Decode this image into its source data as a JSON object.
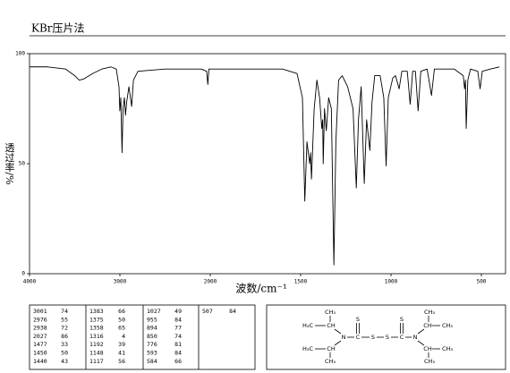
{
  "chart_data": {
    "type": "line",
    "title": "KBr压片法",
    "xlabel": "波数/cm⁻¹",
    "ylabel": "透过率/%",
    "x": [
      4000,
      3800,
      3600,
      3500,
      3450,
      3400,
      3300,
      3200,
      3100,
      3040,
      3010,
      3001,
      2990,
      2976,
      2965,
      2950,
      2938,
      2925,
      2900,
      2870,
      2850,
      2800,
      2500,
      2100,
      2040,
      2027,
      2015,
      1800,
      1600,
      1520,
      1490,
      1477,
      1465,
      1450,
      1445,
      1440,
      1425,
      1410,
      1395,
      1383,
      1378,
      1375,
      1368,
      1358,
      1345,
      1330,
      1316,
      1305,
      1290,
      1270,
      1240,
      1210,
      1192,
      1180,
      1165,
      1148,
      1135,
      1117,
      1105,
      1090,
      1060,
      1040,
      1027,
      1015,
      990,
      975,
      955,
      940,
      910,
      894,
      880,
      865,
      850,
      835,
      800,
      776,
      760,
      700,
      650,
      600,
      593,
      588,
      584,
      575,
      560,
      520,
      507,
      495,
      450,
      400
    ],
    "values": [
      94,
      94,
      93,
      90,
      88,
      88.5,
      91,
      93,
      94,
      93,
      85,
      74,
      80,
      55,
      75,
      80,
      72,
      78,
      85,
      76,
      88,
      92,
      93,
      93,
      92,
      86,
      93,
      93,
      93,
      91,
      80,
      33,
      60,
      50,
      55,
      43,
      75,
      88,
      80,
      66,
      70,
      50,
      75,
      65,
      80,
      75,
      4,
      60,
      88,
      90,
      85,
      75,
      39,
      70,
      85,
      41,
      70,
      56,
      78,
      90,
      90,
      80,
      49,
      80,
      89,
      90,
      84,
      92,
      92,
      77,
      92,
      92,
      74,
      92,
      93,
      81,
      93,
      93,
      93,
      90,
      84,
      88,
      66,
      88,
      93,
      92,
      84,
      92,
      93,
      94
    ],
    "color": "#000000",
    "xlim": [
      4000,
      400
    ],
    "ylim": [
      0,
      100
    ],
    "xticks": [
      4000,
      3000,
      2000,
      1500,
      1000,
      500
    ],
    "yticks": [
      0,
      50,
      100
    ]
  },
  "peak_table": {
    "peaks": [
      [
        3001,
        74
      ],
      [
        2976,
        55
      ],
      [
        2938,
        72
      ],
      [
        2027,
        86
      ],
      [
        1477,
        33
      ],
      [
        1450,
        50
      ],
      [
        1440,
        43
      ],
      [
        1383,
        66
      ],
      [
        1375,
        50
      ],
      [
        1358,
        65
      ],
      [
        1316,
        4
      ],
      [
        1192,
        39
      ],
      [
        1148,
        41
      ],
      [
        1117,
        56
      ],
      [
        1027,
        49
      ],
      [
        955,
        84
      ],
      [
        894,
        77
      ],
      [
        850,
        74
      ],
      [
        776,
        81
      ],
      [
        593,
        84
      ],
      [
        584,
        66
      ],
      [
        507,
        84
      ]
    ]
  },
  "structure": {
    "atoms": [
      "CH₃",
      "H₃C",
      "CH",
      "N",
      "H₃C",
      "CH",
      "CH₃",
      "C",
      "S",
      "S",
      "S",
      "C",
      "S",
      "N",
      "CH₃",
      "CH",
      "CH₃",
      "CH",
      "CH₃",
      "CH₃"
    ]
  }
}
